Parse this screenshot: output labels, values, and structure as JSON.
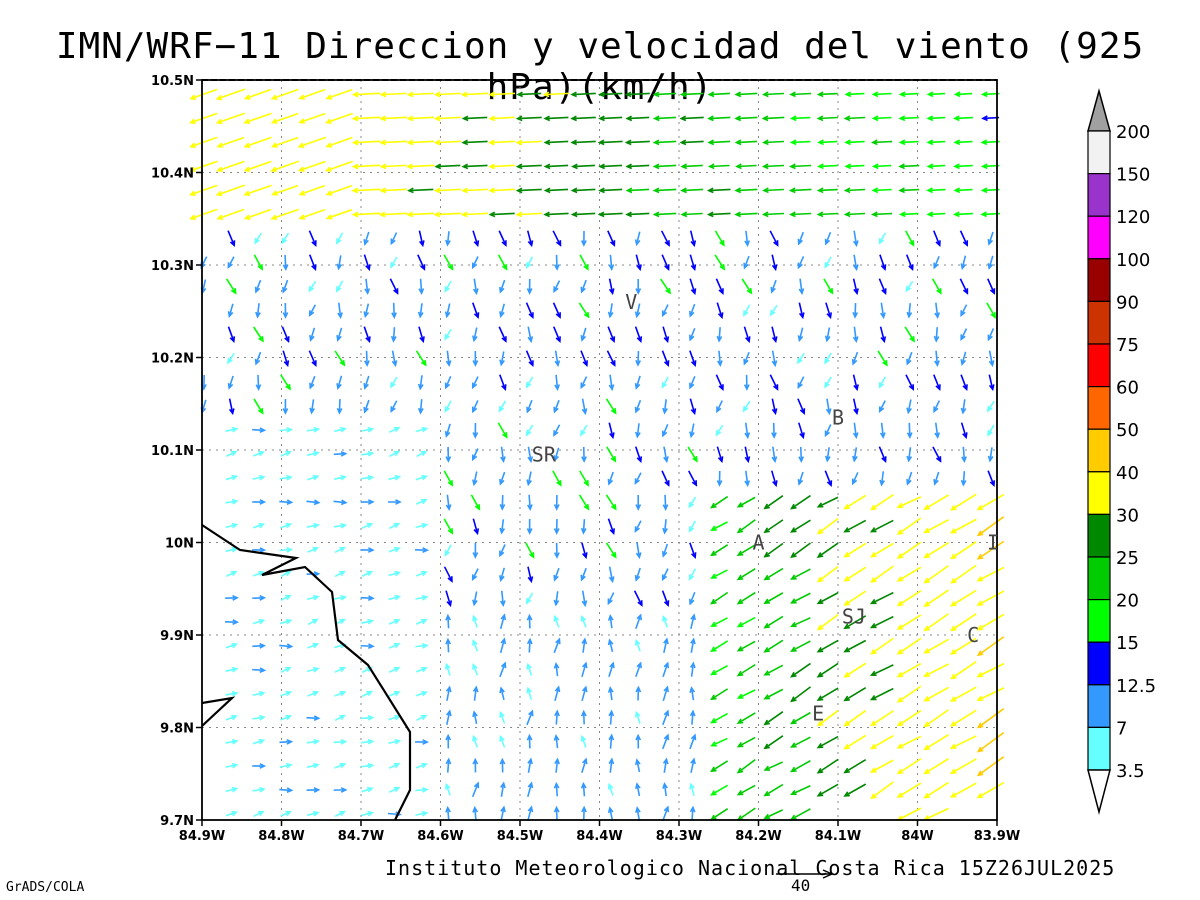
{
  "title": "IMN/WRF−11 Direccion y velocidad del viento (925 hPa)(km/h)",
  "footer": "Instituto Meteorologico Nacional Costa Rica 15Z26JUL2025",
  "software": "GrADS/COLA",
  "reference_vector_label": "40",
  "map": {
    "lat_labels": [
      "10.5N",
      "10.4N",
      "10.3N",
      "10.2N",
      "10.1N",
      "10N",
      "9.9N",
      "9.8N",
      "9.7N"
    ],
    "lon_labels": [
      "84.9W",
      "84.8W",
      "84.7W",
      "84.6W",
      "84.5W",
      "84.4W",
      "84.3W",
      "84.2W",
      "84.1W",
      "84W",
      "83.9W"
    ],
    "lat_range": [
      9.7,
      10.5
    ],
    "lon_range": [
      -84.9,
      -83.9
    ],
    "grid": true,
    "places": [
      {
        "name": "V",
        "lon": -84.36,
        "lat": 10.26
      },
      {
        "name": "B",
        "lon": -84.1,
        "lat": 10.135
      },
      {
        "name": "SR",
        "lon": -84.47,
        "lat": 10.095
      },
      {
        "name": "A",
        "lon": -84.2,
        "lat": 10.0
      },
      {
        "name": "SJ",
        "lon": -84.08,
        "lat": 9.92
      },
      {
        "name": "C",
        "lon": -83.93,
        "lat": 9.9
      },
      {
        "name": "E",
        "lon": -84.125,
        "lat": 9.815
      },
      {
        "name": "I",
        "lon": -83.905,
        "lat": 10.0
      }
    ]
  },
  "colorbar": {
    "labels": [
      "200",
      "150",
      "120",
      "100",
      "90",
      "75",
      "60",
      "50",
      "40",
      "30",
      "25",
      "20",
      "15",
      "12.5",
      "7",
      "3.5"
    ],
    "colors": [
      "#f2f2f2",
      "#9933cc",
      "#ff00ff",
      "#990000",
      "#cc3300",
      "#ff0000",
      "#ff6600",
      "#ffcc00",
      "#ffff00",
      "#008800",
      "#00cc00",
      "#00ff00",
      "#0000ff",
      "#3399ff",
      "#66ffff"
    ],
    "over_arrow_color": "#a0a0a0",
    "under_arrow_color": "#ffffff"
  }
}
